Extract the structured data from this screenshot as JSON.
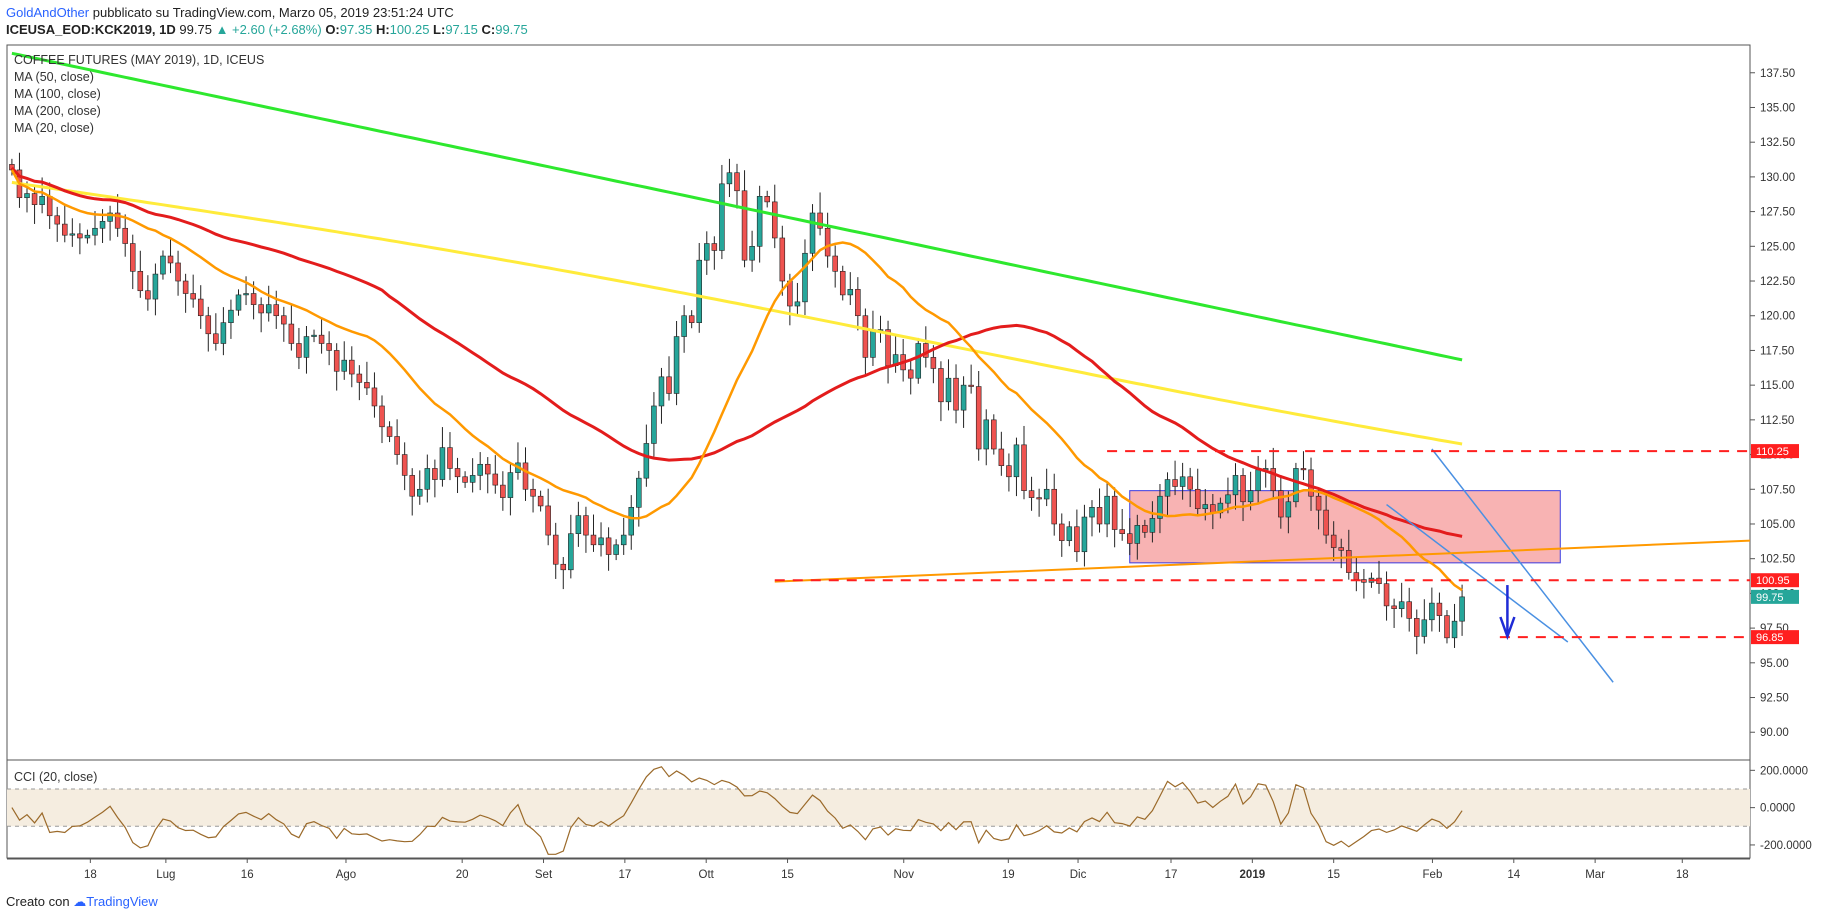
{
  "header": {
    "author": "GoldAndOther",
    "published": "pubblicato su TradingView.com, Marzo 05, 2019 23:51:24 UTC",
    "symbol": "ICEUSA_EOD:KCK2019, 1D",
    "last": "99.75",
    "change": "▲ +2.60 (+2.68%)",
    "o_label": "O:",
    "o_value": "97.35",
    "h_label": "H:",
    "h_value": "100.25",
    "l_label": "L:",
    "l_value": "97.15",
    "c_label": "C:",
    "c_value": "99.75"
  },
  "legend": {
    "title": "COFFEE FUTURES (MAY 2019), 1D, ICEUS",
    "ma50": "MA (50, close)",
    "ma100": "MA (100, close)",
    "ma200": "MA (200, close)",
    "ma20": "MA (20, close)"
  },
  "cci_legend": "CCI (20, close)",
  "footer": {
    "created": "Creato con",
    "brand": "TradingView"
  },
  "colors": {
    "up": "#26a69a",
    "down": "#ef5350",
    "ma50": "#e31c1c",
    "ma100": "#ffeb3b",
    "ma200": "#2ee82e",
    "ma20": "#ff9900",
    "cci": "#9b6a2a",
    "box": "#f8b3b3",
    "channel": "#4a90e2",
    "dashed": "#ff1f1f",
    "target_arrow": "#1e2bd6"
  },
  "chart_data": {
    "type": "candlestick",
    "y_ticks": [
      "137.50",
      "135.00",
      "132.50",
      "130.00",
      "127.50",
      "125.00",
      "122.50",
      "120.00",
      "117.50",
      "115.00",
      "112.50",
      "110.00",
      "107.50",
      "105.00",
      "102.50",
      "100.00",
      "97.50",
      "95.00",
      "92.50",
      "90.00"
    ],
    "ylim": [
      88.0,
      139.5
    ],
    "x_ticks": [
      {
        "label": "18",
        "day": 14
      },
      {
        "label": "Lug",
        "day": 27
      },
      {
        "label": "16",
        "day": 41
      },
      {
        "label": "Ago",
        "day": 58
      },
      {
        "label": "20",
        "day": 78
      },
      {
        "label": "Set",
        "day": 92
      },
      {
        "label": "17",
        "day": 106
      },
      {
        "label": "Ott",
        "day": 120
      },
      {
        "label": "15",
        "day": 134
      },
      {
        "label": "Nov",
        "day": 154
      },
      {
        "label": "19",
        "day": 172
      },
      {
        "label": "Dic",
        "day": 184
      },
      {
        "label": "17",
        "day": 200
      },
      {
        "label": "2019",
        "day": 214
      },
      {
        "label": "15",
        "day": 228
      },
      {
        "label": "Feb",
        "day": 245
      },
      {
        "label": "14",
        "day": 259
      },
      {
        "label": "Mar",
        "day": 273
      },
      {
        "label": "18",
        "day": 288
      }
    ],
    "x_range_days": [
      0,
      300
    ],
    "closes": [
      130.5,
      128.5,
      128.8,
      128.0,
      128.6,
      127.2,
      126.6,
      125.8,
      125.9,
      125.6,
      125.8,
      126.3,
      126.8,
      127.4,
      126.3,
      125.2,
      123.2,
      121.8,
      121.2,
      123.0,
      124.3,
      123.8,
      122.5,
      121.6,
      121.2,
      120.0,
      118.7,
      118.0,
      119.5,
      120.4,
      121.5,
      121.6,
      120.8,
      120.2,
      120.8,
      120.0,
      119.4,
      118.0,
      117.0,
      118.5,
      118.6,
      118.0,
      117.5,
      116.0,
      116.8,
      115.8,
      115.2,
      114.8,
      113.5,
      112.0,
      111.3,
      110.0,
      108.5,
      107.0,
      107.5,
      109.0,
      108.2,
      110.5,
      109.0,
      108.4,
      108.0,
      108.5,
      109.3,
      108.6,
      107.8,
      106.9,
      108.7,
      109.4,
      107.5,
      107.0,
      106.3,
      104.2,
      102.1,
      101.7,
      104.3,
      105.6,
      104.2,
      103.5,
      104.0,
      102.8,
      103.5,
      104.2,
      106.2,
      108.3,
      110.8,
      113.5,
      115.6,
      114.4,
      118.5,
      120.0,
      119.5,
      124.0,
      125.2,
      124.7,
      129.5,
      130.3,
      129.0,
      124.0,
      125.0,
      128.6,
      128.2,
      125.6,
      122.5,
      120.7,
      121.0,
      124.5,
      127.4,
      126.3,
      124.3,
      123.2,
      121.5,
      121.9,
      120.0,
      117.0,
      119.0,
      119.0,
      116.4,
      117.2,
      116.1,
      115.5,
      118.0,
      117.0,
      116.2,
      113.8,
      115.5,
      113.2,
      115.0,
      114.9,
      110.4,
      112.5,
      110.4,
      109.2,
      108.4,
      110.7,
      107.4,
      106.9,
      106.8,
      107.5,
      105.0,
      103.8,
      104.8,
      103.0,
      105.5,
      106.2,
      105.0,
      107.0,
      104.6,
      104.3,
      103.6,
      104.9,
      104.4,
      105.4,
      107.0,
      108.2,
      107.7,
      108.4,
      107.5,
      106.1,
      106.4,
      105.8,
      106.5,
      107.1,
      108.5,
      106.6,
      107.4,
      108.9,
      109.0,
      107.4,
      105.5,
      106.6,
      109.0,
      108.9,
      107.0,
      106.0,
      104.2,
      103.3,
      103.1,
      101.5,
      101.0,
      100.8,
      101.1,
      100.7,
      99.1,
      98.9,
      99.4,
      98.2,
      96.9,
      98.1,
      99.3,
      98.4,
      96.8,
      98.0,
      99.75
    ],
    "last_price": 99.75,
    "levels": [
      {
        "label": "110.25",
        "value": 110.25,
        "bg": "#ff1f1f"
      },
      {
        "label": "100.95",
        "value": 100.95,
        "bg": "#ff1f1f"
      },
      {
        "label": "99.75",
        "value": 99.75,
        "bg": "#26a69a"
      },
      {
        "label": "96.85",
        "value": 96.85,
        "bg": "#ff1f1f"
      }
    ],
    "cci_ticks": [
      "200.0000",
      "0.0000",
      "-200.0000"
    ],
    "cci_ylim": [
      -270,
      250
    ],
    "cci_band": [
      -100,
      100
    ]
  }
}
